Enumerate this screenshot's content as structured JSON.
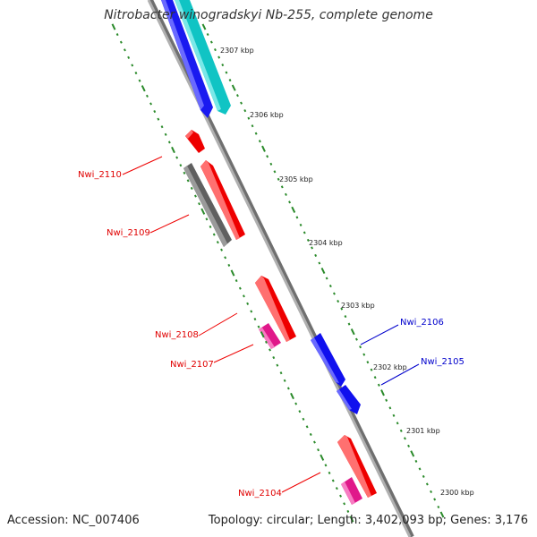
{
  "title": "Nitrobacter winogradskyi Nb-255, complete genome",
  "footer": {
    "accession": "Accession: NC_007406",
    "summary": "Topology: circular; Length: 3,402,093 bp; Genes: 3,176"
  },
  "scale_ticks": [
    {
      "label": "2307 kbp",
      "kbp": 2307
    },
    {
      "label": "2306 kbp",
      "kbp": 2306
    },
    {
      "label": "2305 kbp",
      "kbp": 2305
    },
    {
      "label": "2304 kbp",
      "kbp": 2304
    },
    {
      "label": "2303 kbp",
      "kbp": 2303
    },
    {
      "label": "2302 kbp",
      "kbp": 2302
    },
    {
      "label": "2301 kbp",
      "kbp": 2301
    },
    {
      "label": "2300 kbp",
      "kbp": 2300
    }
  ],
  "gene_labels": [
    {
      "label": "Nwi_2110",
      "strand": "minus",
      "color": "#e00000"
    },
    {
      "label": "Nwi_2109",
      "strand": "minus",
      "color": "#e00000"
    },
    {
      "label": "Nwi_2108",
      "strand": "minus",
      "color": "#e00000"
    },
    {
      "label": "Nwi_2107",
      "strand": "minus",
      "color": "#e00000"
    },
    {
      "label": "Nwi_2106",
      "strand": "plus",
      "color": "#0000cc"
    },
    {
      "label": "Nwi_2105",
      "strand": "plus",
      "color": "#0000cc"
    },
    {
      "label": "Nwi_2104",
      "strand": "minus",
      "color": "#e00000"
    }
  ],
  "colors": {
    "backbone": "#909090",
    "scale": "#2a8a2a",
    "cds_minus": "#ee0000",
    "cds_plus": "#0000ee",
    "other_feature": "#00bfbf",
    "rna_feature": "#ee2a99",
    "gray_feature": "#707070"
  }
}
